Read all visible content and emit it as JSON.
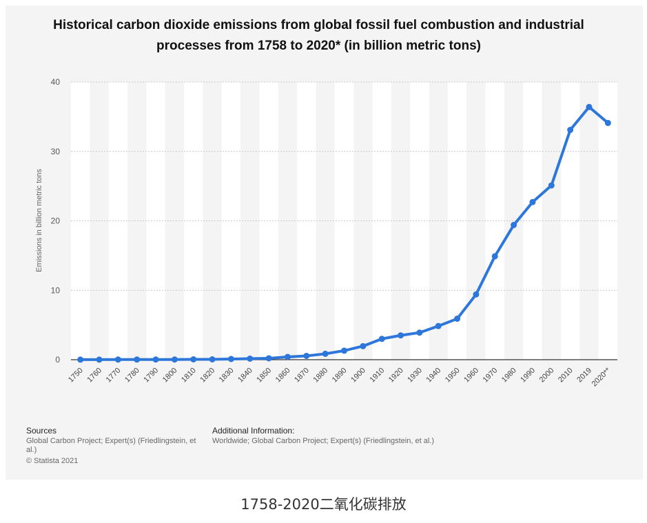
{
  "chart_data": {
    "type": "line",
    "title": "Historical carbon dioxide emissions from global fossil fuel combustion and industrial processes from 1758 to 2020* (in billion metric tons)",
    "ylabel": "Emissions in billion metric tons",
    "xlabel": "",
    "ylim": [
      0,
      40
    ],
    "yticks": [
      0,
      10,
      20,
      30,
      40
    ],
    "grid": true,
    "categories": [
      "1750",
      "1760",
      "1770",
      "1780",
      "1790",
      "1800",
      "1810",
      "1820",
      "1830",
      "1840",
      "1850",
      "1860",
      "1870",
      "1880",
      "1890",
      "1900",
      "1910",
      "1920",
      "1930",
      "1940",
      "1950",
      "1960",
      "1970",
      "1980",
      "1990",
      "2000",
      "2010",
      "2019",
      "2020**"
    ],
    "series": [
      {
        "color": "#2c77d9",
        "values": [
          0.01,
          0.01,
          0.02,
          0.02,
          0.03,
          0.03,
          0.05,
          0.05,
          0.1,
          0.15,
          0.2,
          0.4,
          0.55,
          0.85,
          1.3,
          1.95,
          3.0,
          3.5,
          3.9,
          4.85,
          5.9,
          9.4,
          14.9,
          19.4,
          22.7,
          25.1,
          33.1,
          36.4,
          34.1
        ]
      }
    ]
  },
  "footer": {
    "sources_heading": "Sources",
    "sources_line1": "Global Carbon Project; Expert(s) (Friedlingstein, et",
    "sources_line2": "al.)",
    "copyright": "© Statista 2021",
    "additional_heading": "Additional Information:",
    "additional_text": "Worldwide; Global Carbon Project; Expert(s) (Friedlingstein, et al.)"
  },
  "caption": "1758-2020二氧化碳排放"
}
